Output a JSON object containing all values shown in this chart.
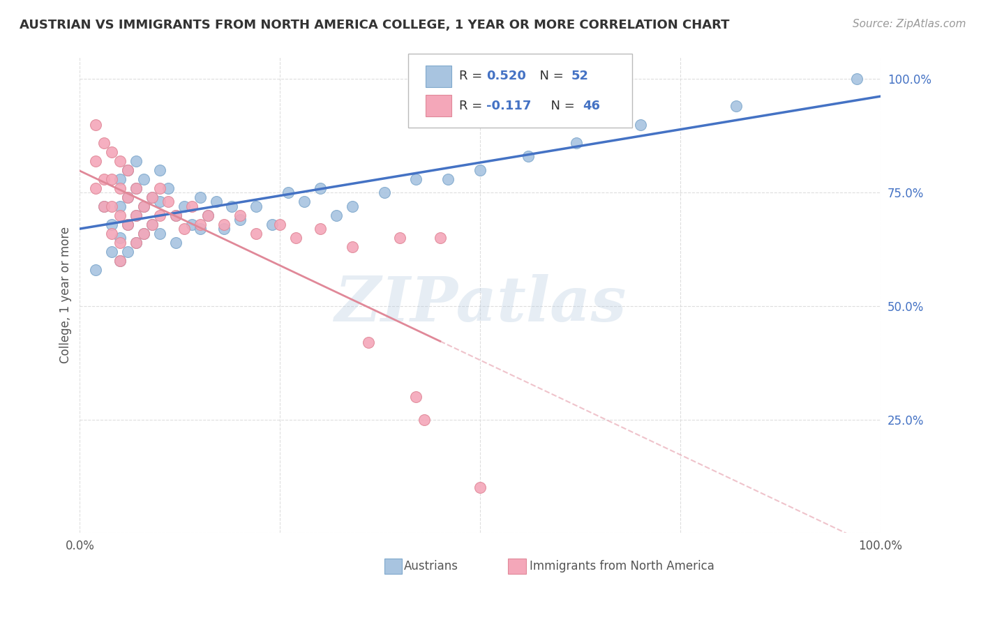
{
  "title": "AUSTRIAN VS IMMIGRANTS FROM NORTH AMERICA COLLEGE, 1 YEAR OR MORE CORRELATION CHART",
  "source": "Source: ZipAtlas.com",
  "ylabel": "College, 1 year or more",
  "blue_scatter": [
    [
      0.02,
      0.58
    ],
    [
      0.03,
      0.72
    ],
    [
      0.04,
      0.68
    ],
    [
      0.04,
      0.62
    ],
    [
      0.05,
      0.78
    ],
    [
      0.05,
      0.72
    ],
    [
      0.05,
      0.65
    ],
    [
      0.05,
      0.6
    ],
    [
      0.06,
      0.8
    ],
    [
      0.06,
      0.74
    ],
    [
      0.06,
      0.68
    ],
    [
      0.06,
      0.62
    ],
    [
      0.07,
      0.82
    ],
    [
      0.07,
      0.76
    ],
    [
      0.07,
      0.7
    ],
    [
      0.07,
      0.64
    ],
    [
      0.08,
      0.78
    ],
    [
      0.08,
      0.72
    ],
    [
      0.08,
      0.66
    ],
    [
      0.09,
      0.74
    ],
    [
      0.09,
      0.68
    ],
    [
      0.1,
      0.8
    ],
    [
      0.1,
      0.73
    ],
    [
      0.1,
      0.66
    ],
    [
      0.11,
      0.76
    ],
    [
      0.12,
      0.7
    ],
    [
      0.12,
      0.64
    ],
    [
      0.13,
      0.72
    ],
    [
      0.14,
      0.68
    ],
    [
      0.15,
      0.74
    ],
    [
      0.15,
      0.67
    ],
    [
      0.16,
      0.7
    ],
    [
      0.17,
      0.73
    ],
    [
      0.18,
      0.67
    ],
    [
      0.19,
      0.72
    ],
    [
      0.2,
      0.69
    ],
    [
      0.22,
      0.72
    ],
    [
      0.24,
      0.68
    ],
    [
      0.26,
      0.75
    ],
    [
      0.28,
      0.73
    ],
    [
      0.3,
      0.76
    ],
    [
      0.32,
      0.7
    ],
    [
      0.34,
      0.72
    ],
    [
      0.38,
      0.75
    ],
    [
      0.42,
      0.78
    ],
    [
      0.46,
      0.78
    ],
    [
      0.5,
      0.8
    ],
    [
      0.56,
      0.83
    ],
    [
      0.62,
      0.86
    ],
    [
      0.7,
      0.9
    ],
    [
      0.82,
      0.94
    ],
    [
      0.97,
      1.0
    ]
  ],
  "pink_scatter": [
    [
      0.02,
      0.9
    ],
    [
      0.02,
      0.82
    ],
    [
      0.02,
      0.76
    ],
    [
      0.03,
      0.86
    ],
    [
      0.03,
      0.78
    ],
    [
      0.03,
      0.72
    ],
    [
      0.04,
      0.84
    ],
    [
      0.04,
      0.78
    ],
    [
      0.04,
      0.72
    ],
    [
      0.04,
      0.66
    ],
    [
      0.05,
      0.82
    ],
    [
      0.05,
      0.76
    ],
    [
      0.05,
      0.7
    ],
    [
      0.05,
      0.64
    ],
    [
      0.05,
      0.6
    ],
    [
      0.06,
      0.8
    ],
    [
      0.06,
      0.74
    ],
    [
      0.06,
      0.68
    ],
    [
      0.07,
      0.76
    ],
    [
      0.07,
      0.7
    ],
    [
      0.07,
      0.64
    ],
    [
      0.08,
      0.72
    ],
    [
      0.08,
      0.66
    ],
    [
      0.09,
      0.74
    ],
    [
      0.09,
      0.68
    ],
    [
      0.1,
      0.76
    ],
    [
      0.1,
      0.7
    ],
    [
      0.11,
      0.73
    ],
    [
      0.12,
      0.7
    ],
    [
      0.13,
      0.67
    ],
    [
      0.14,
      0.72
    ],
    [
      0.15,
      0.68
    ],
    [
      0.16,
      0.7
    ],
    [
      0.18,
      0.68
    ],
    [
      0.2,
      0.7
    ],
    [
      0.22,
      0.66
    ],
    [
      0.25,
      0.68
    ],
    [
      0.27,
      0.65
    ],
    [
      0.3,
      0.67
    ],
    [
      0.34,
      0.63
    ],
    [
      0.36,
      0.42
    ],
    [
      0.4,
      0.65
    ],
    [
      0.42,
      0.3
    ],
    [
      0.43,
      0.25
    ],
    [
      0.45,
      0.65
    ],
    [
      0.5,
      0.1
    ]
  ],
  "blue_line_color": "#4472c4",
  "pink_line_color": "#e08898",
  "blue_dot_facecolor": "#a8c4e0",
  "blue_dot_edgecolor": "#7fa8cc",
  "pink_dot_facecolor": "#f4a7b9",
  "pink_dot_edgecolor": "#e08898",
  "bg_color": "#ffffff",
  "grid_color": "#dddddd",
  "watermark": "ZIPatlas",
  "xlim": [
    0.0,
    1.0
  ],
  "ylim": [
    0.0,
    1.05
  ],
  "yticks": [
    0.0,
    0.25,
    0.5,
    0.75,
    1.0
  ],
  "ytick_labels": [
    "",
    "25.0%",
    "50.0%",
    "75.0%",
    "100.0%"
  ],
  "xtick_labels": [
    "0.0%",
    "",
    "",
    "",
    "100.0%"
  ],
  "title_fontsize": 13,
  "source_fontsize": 11,
  "tick_fontsize": 12,
  "legend_fontsize": 13,
  "ylabel_fontsize": 12,
  "dot_size": 130,
  "blue_r_text": "0.520",
  "blue_n_text": "52",
  "pink_r_text": "-0.117",
  "pink_n_text": "46"
}
